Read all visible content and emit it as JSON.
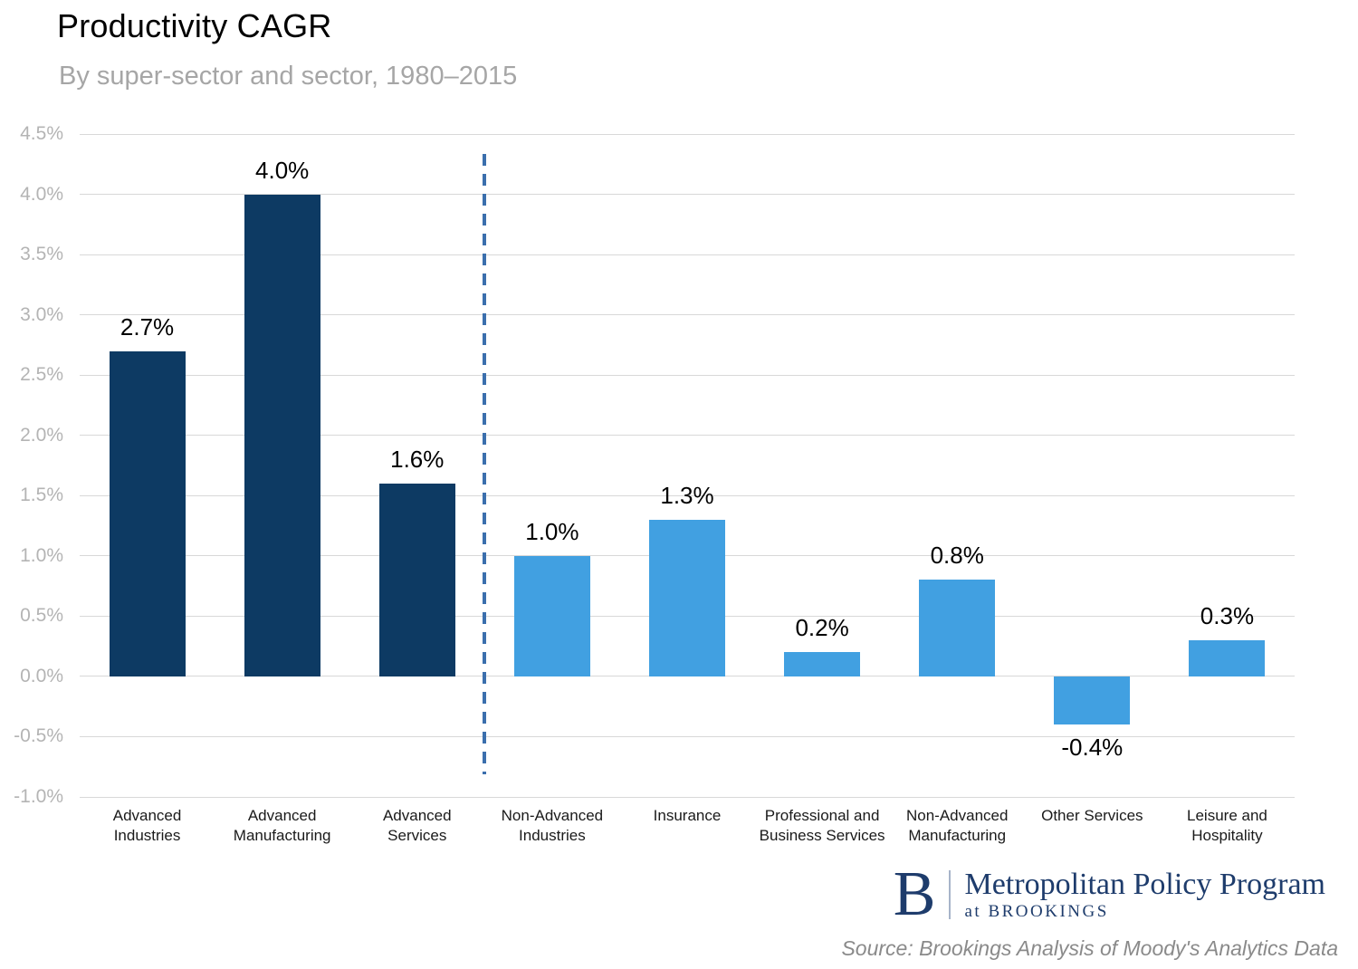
{
  "chart_data": {
    "type": "bar",
    "title": "Productivity CAGR",
    "subtitle": "By super-sector and sector, 1980–2015",
    "xlabel": "",
    "ylabel": "",
    "ylim": [
      -1.0,
      4.5
    ],
    "ytick_step": 0.5,
    "ytick_labels": [
      "4.5%",
      "4.0%",
      "3.5%",
      "3.0%",
      "2.5%",
      "2.0%",
      "1.5%",
      "1.0%",
      "0.5%",
      "0.0%",
      "-0.5%",
      "-1.0%"
    ],
    "grid": true,
    "legend": "none",
    "categories": [
      [
        "Advanced",
        "Industries"
      ],
      [
        "Advanced",
        "Manufacturing"
      ],
      [
        "Advanced",
        "Services"
      ],
      [
        "Non-Advanced",
        "Industries"
      ],
      [
        "Insurance"
      ],
      [
        "Professional and",
        "Business Services"
      ],
      [
        "Non-Advanced",
        "Manufacturing"
      ],
      [
        "Other Services"
      ],
      [
        "Leisure and",
        "Hospitality"
      ]
    ],
    "values": [
      2.7,
      4.0,
      1.6,
      1.0,
      1.3,
      0.2,
      0.8,
      -0.4,
      0.3
    ],
    "value_labels": [
      "2.7%",
      "4.0%",
      "1.6%",
      "1.0%",
      "1.3%",
      "0.2%",
      "0.8%",
      "-0.4%",
      "0.3%"
    ],
    "bar_colors": [
      "dark",
      "dark",
      "dark",
      "light",
      "light",
      "light",
      "light",
      "light",
      "light"
    ],
    "divider_after_index": 2,
    "colors": {
      "dark": "#0d3a63",
      "light": "#41a0e1",
      "divider": "#3b6fad",
      "gridline": "#d8d8d8",
      "axis_label": "#b4b4b4"
    }
  },
  "footer": {
    "logo_letter": "B",
    "program": "Metropolitan Policy Program",
    "subbrand": "at BROOKINGS",
    "source": "Source: Brookings Analysis of Moody's Analytics Data"
  }
}
